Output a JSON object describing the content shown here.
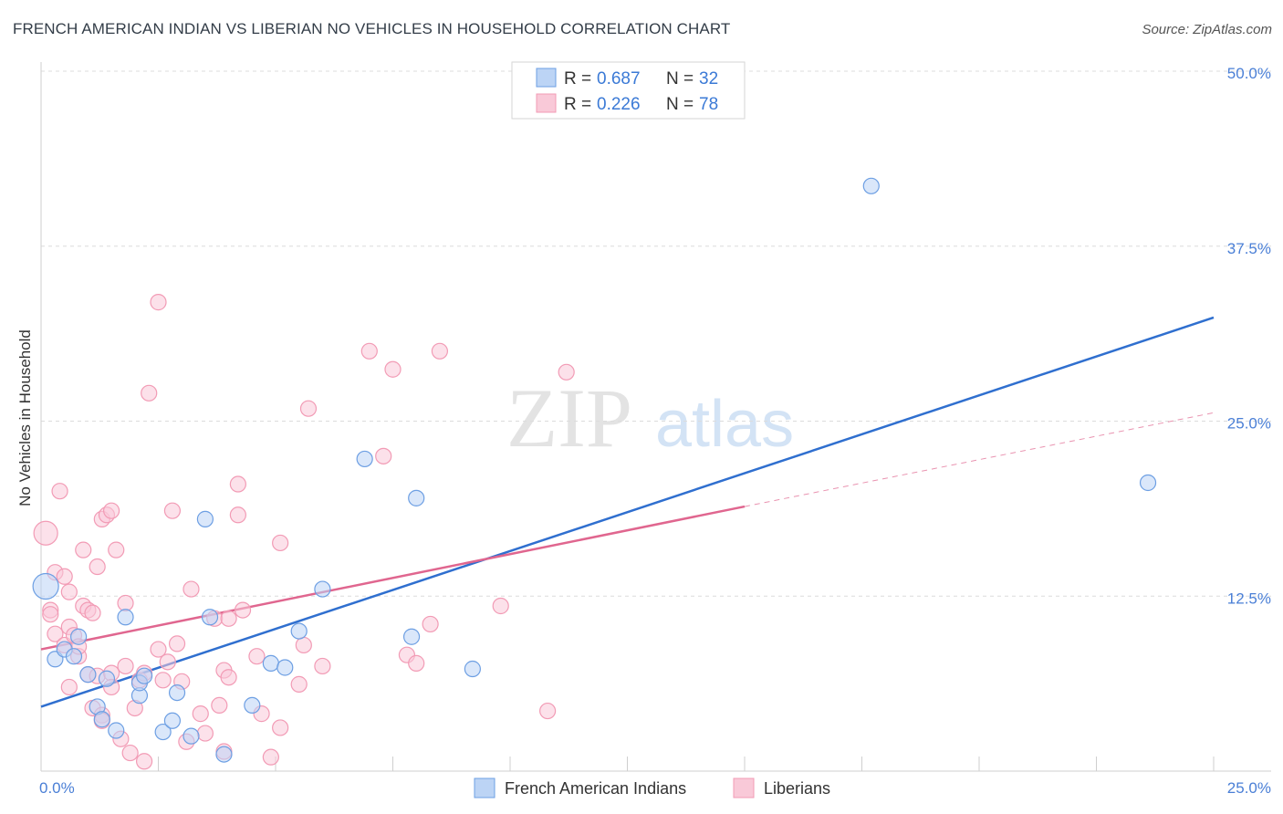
{
  "chart_data": {
    "type": "scatter",
    "title": "FRENCH AMERICAN INDIAN VS LIBERIAN NO VEHICLES IN HOUSEHOLD CORRELATION CHART",
    "source": "Source: ZipAtlas.com",
    "ylabel": "No Vehicles in Household",
    "watermark": {
      "zip": "ZIP",
      "atlas": "atlas"
    },
    "xlim": [
      0,
      25
    ],
    "ylim": [
      0,
      50
    ],
    "y_ticks": [
      {
        "value": 50,
        "label": "50.0%"
      },
      {
        "value": 37.5,
        "label": "37.5%"
      },
      {
        "value": 25,
        "label": "25.0%"
      },
      {
        "value": 12.5,
        "label": "12.5%"
      }
    ],
    "x_tick_labels": {
      "min": "0.0%",
      "max": "25.0%"
    },
    "legend": {
      "r_label": "R =",
      "n_label": "N =",
      "entries": [
        {
          "r": "0.687",
          "n": "32"
        },
        {
          "r": "0.226",
          "n": "78"
        }
      ]
    },
    "series": [
      {
        "name": "French American Indians",
        "color": "#6d9fe3",
        "fill": "#bcd4f5",
        "line_color": "#2f6fcf",
        "trend": {
          "x0": 0,
          "y0": 4.6,
          "x1": 25,
          "y1": 32.4
        },
        "points": [
          [
            0.1,
            13.2
          ],
          [
            0.3,
            8.0
          ],
          [
            0.5,
            8.7
          ],
          [
            0.7,
            8.2
          ],
          [
            0.8,
            9.6
          ],
          [
            1.0,
            6.9
          ],
          [
            1.2,
            4.6
          ],
          [
            1.3,
            3.7
          ],
          [
            1.4,
            6.6
          ],
          [
            1.6,
            2.9
          ],
          [
            1.8,
            11.0
          ],
          [
            2.1,
            5.4
          ],
          [
            2.1,
            6.3
          ],
          [
            2.2,
            6.8
          ],
          [
            2.6,
            2.8
          ],
          [
            2.8,
            3.6
          ],
          [
            2.9,
            5.6
          ],
          [
            3.2,
            2.5
          ],
          [
            3.5,
            18.0
          ],
          [
            3.6,
            11.0
          ],
          [
            3.9,
            1.2
          ],
          [
            4.5,
            4.7
          ],
          [
            4.9,
            7.7
          ],
          [
            5.2,
            7.4
          ],
          [
            5.5,
            10.0
          ],
          [
            6.0,
            13.0
          ],
          [
            6.9,
            22.3
          ],
          [
            7.9,
            9.6
          ],
          [
            8.0,
            19.5
          ],
          [
            9.2,
            7.3
          ],
          [
            17.7,
            41.8
          ],
          [
            23.6,
            20.6
          ]
        ]
      },
      {
        "name": "Liberians",
        "color": "#f29bb5",
        "fill": "#f9c9d8",
        "line_color": "#e0668f",
        "trend": {
          "x0": 0,
          "y0": 8.7,
          "x1": 15,
          "y1": 18.9
        },
        "trend_ext": {
          "x0": 15,
          "y0": 18.9,
          "x1": 25,
          "y1": 25.6
        },
        "points": [
          [
            0.1,
            17.0
          ],
          [
            0.2,
            11.5
          ],
          [
            0.2,
            11.2
          ],
          [
            0.3,
            9.8
          ],
          [
            0.3,
            14.2
          ],
          [
            0.4,
            20.0
          ],
          [
            0.5,
            13.9
          ],
          [
            0.5,
            9.0
          ],
          [
            0.6,
            12.8
          ],
          [
            0.6,
            6.0
          ],
          [
            0.6,
            10.3
          ],
          [
            0.7,
            9.7
          ],
          [
            0.8,
            8.2
          ],
          [
            0.8,
            8.9
          ],
          [
            0.9,
            15.8
          ],
          [
            0.9,
            11.8
          ],
          [
            1.0,
            11.5
          ],
          [
            1.0,
            6.9
          ],
          [
            1.1,
            4.5
          ],
          [
            1.1,
            11.3
          ],
          [
            1.2,
            14.6
          ],
          [
            1.2,
            6.8
          ],
          [
            1.3,
            4.0
          ],
          [
            1.3,
            3.6
          ],
          [
            1.3,
            18.0
          ],
          [
            1.4,
            18.3
          ],
          [
            1.5,
            7.0
          ],
          [
            1.5,
            6.0
          ],
          [
            1.5,
            18.6
          ],
          [
            1.6,
            15.8
          ],
          [
            1.7,
            2.3
          ],
          [
            1.8,
            7.5
          ],
          [
            1.8,
            12.0
          ],
          [
            1.9,
            1.3
          ],
          [
            2.0,
            4.5
          ],
          [
            2.1,
            6.5
          ],
          [
            2.2,
            7.0
          ],
          [
            2.2,
            0.7
          ],
          [
            2.3,
            27.0
          ],
          [
            2.5,
            8.7
          ],
          [
            2.5,
            33.5
          ],
          [
            2.6,
            6.5
          ],
          [
            2.7,
            7.8
          ],
          [
            2.8,
            18.6
          ],
          [
            2.9,
            9.1
          ],
          [
            3.0,
            6.4
          ],
          [
            3.1,
            2.1
          ],
          [
            3.2,
            13.0
          ],
          [
            3.4,
            4.1
          ],
          [
            3.5,
            2.7
          ],
          [
            3.7,
            10.9
          ],
          [
            3.8,
            4.7
          ],
          [
            3.9,
            1.4
          ],
          [
            3.9,
            7.2
          ],
          [
            4.0,
            6.7
          ],
          [
            4.0,
            10.9
          ],
          [
            4.2,
            20.5
          ],
          [
            4.2,
            18.3
          ],
          [
            4.3,
            11.5
          ],
          [
            4.6,
            8.2
          ],
          [
            4.7,
            4.1
          ],
          [
            4.9,
            1.0
          ],
          [
            5.1,
            3.1
          ],
          [
            5.1,
            16.3
          ],
          [
            5.5,
            6.2
          ],
          [
            5.6,
            9.0
          ],
          [
            5.7,
            25.9
          ],
          [
            6.0,
            7.5
          ],
          [
            7.0,
            30.0
          ],
          [
            7.3,
            22.5
          ],
          [
            7.5,
            28.7
          ],
          [
            7.8,
            8.3
          ],
          [
            8.0,
            7.7
          ],
          [
            8.3,
            10.5
          ],
          [
            8.5,
            30.0
          ],
          [
            9.8,
            11.8
          ],
          [
            10.8,
            4.3
          ],
          [
            11.2,
            28.5
          ]
        ]
      }
    ]
  }
}
